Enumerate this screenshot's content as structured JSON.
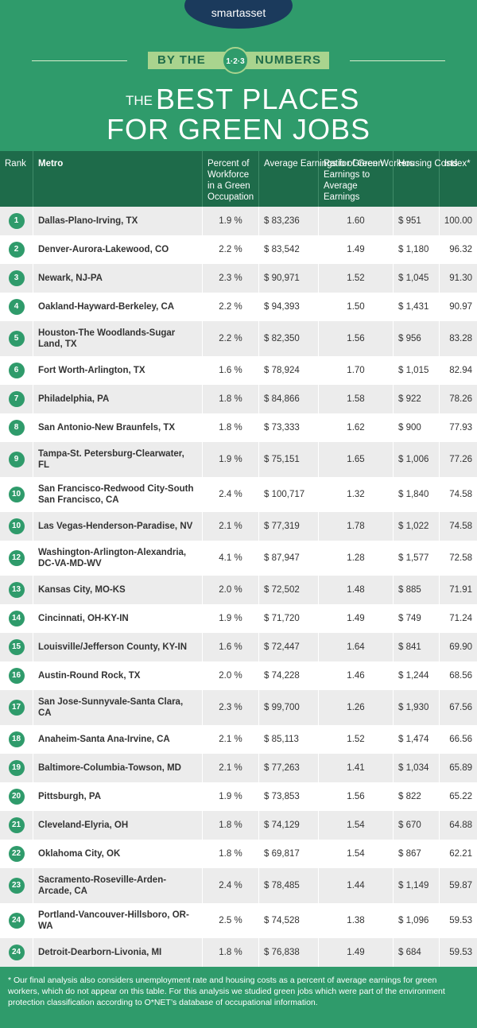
{
  "header": {
    "logo": "smartasset",
    "banner_left": "BY THE",
    "banner_badge": "1·2·3",
    "banner_right": "NUMBERS",
    "title_small": "THE",
    "title_line1": "BEST PLACES",
    "title_line2": "FOR GREEN JOBS"
  },
  "table": {
    "columns": [
      "Rank",
      "Metro",
      "Percent of Workforce in a Green Occupation",
      "Average Earnings for Green Workers",
      "Ratio of Green Earnings to Average Earnings",
      "Housing Costs",
      "Index*"
    ],
    "rows": [
      [
        "1",
        "Dallas-Plano-Irving, TX",
        "1.9 %",
        "$ 83,236",
        "1.60",
        "$ 951",
        "100.00"
      ],
      [
        "2",
        "Denver-Aurora-Lakewood, CO",
        "2.2 %",
        "$ 83,542",
        "1.49",
        "$ 1,180",
        "96.32"
      ],
      [
        "3",
        "Newark, NJ-PA",
        "2.3 %",
        "$ 90,971",
        "1.52",
        "$ 1,045",
        "91.30"
      ],
      [
        "4",
        "Oakland-Hayward-Berkeley, CA",
        "2.2 %",
        "$ 94,393",
        "1.50",
        "$ 1,431",
        "90.97"
      ],
      [
        "5",
        "Houston-The Woodlands-Sugar Land, TX",
        "2.2 %",
        "$ 82,350",
        "1.56",
        "$ 956",
        "83.28"
      ],
      [
        "6",
        "Fort Worth-Arlington, TX",
        "1.6 %",
        "$ 78,924",
        "1.70",
        "$ 1,015",
        "82.94"
      ],
      [
        "7",
        "Philadelphia, PA",
        "1.8 %",
        "$ 84,866",
        "1.58",
        "$ 922",
        "78.26"
      ],
      [
        "8",
        "San Antonio-New Braunfels, TX",
        "1.8 %",
        "$ 73,333",
        "1.62",
        "$ 900",
        "77.93"
      ],
      [
        "9",
        "Tampa-St. Petersburg-Clearwater, FL",
        "1.9 %",
        "$ 75,151",
        "1.65",
        "$ 1,006",
        "77.26"
      ],
      [
        "10",
        "San Francisco-Redwood City-South San Francisco, CA",
        "2.4 %",
        "$ 100,717",
        "1.32",
        "$ 1,840",
        "74.58"
      ],
      [
        "10",
        "Las Vegas-Henderson-Paradise, NV",
        "2.1 %",
        "$ 77,319",
        "1.78",
        "$ 1,022",
        "74.58"
      ],
      [
        "12",
        "Washington-Arlington-Alexandria, DC-VA-MD-WV",
        "4.1 %",
        "$ 87,947",
        "1.28",
        "$ 1,577",
        "72.58"
      ],
      [
        "13",
        "Kansas City, MO-KS",
        "2.0 %",
        "$ 72,502",
        "1.48",
        "$ 885",
        "71.91"
      ],
      [
        "14",
        "Cincinnati, OH-KY-IN",
        "1.9 %",
        "$ 71,720",
        "1.49",
        "$ 749",
        "71.24"
      ],
      [
        "15",
        "Louisville/Jefferson County, KY-IN",
        "1.6 %",
        "$ 72,447",
        "1.64",
        "$ 841",
        "69.90"
      ],
      [
        "16",
        "Austin-Round Rock, TX",
        "2.0 %",
        "$ 74,228",
        "1.46",
        "$ 1,244",
        "68.56"
      ],
      [
        "17",
        "San Jose-Sunnyvale-Santa Clara, CA",
        "2.3 %",
        "$ 99,700",
        "1.26",
        "$ 1,930",
        "67.56"
      ],
      [
        "18",
        "Anaheim-Santa Ana-Irvine, CA",
        "2.1 %",
        "$ 85,113",
        "1.52",
        "$ 1,474",
        "66.56"
      ],
      [
        "19",
        "Baltimore-Columbia-Towson, MD",
        "2.1 %",
        "$ 77,263",
        "1.41",
        "$ 1,034",
        "65.89"
      ],
      [
        "20",
        "Pittsburgh, PA",
        "1.9 %",
        "$ 73,853",
        "1.56",
        "$ 822",
        "65.22"
      ],
      [
        "21",
        "Cleveland-Elyria, OH",
        "1.8 %",
        "$ 74,129",
        "1.54",
        "$ 670",
        "64.88"
      ],
      [
        "22",
        "Oklahoma City, OK",
        "1.8 %",
        "$ 69,817",
        "1.54",
        "$ 867",
        "62.21"
      ],
      [
        "23",
        "Sacramento-Roseville-Arden-Arcade, CA",
        "2.4 %",
        "$ 78,485",
        "1.44",
        "$ 1,149",
        "59.87"
      ],
      [
        "24",
        "Portland-Vancouver-Hillsboro, OR-WA",
        "2.5 %",
        "$ 74,528",
        "1.38",
        "$ 1,096",
        "59.53"
      ],
      [
        "24",
        "Detroit-Dearborn-Livonia, MI",
        "1.8 %",
        "$ 76,838",
        "1.49",
        "$ 684",
        "59.53"
      ]
    ]
  },
  "footnote": "* Our final analysis also considers unemployment rate and housing costs as a percent of average earnings for green workers, which do not appear on this table. For this analysis we studied green jobs which were part of the environment protection classification according to O*NET’s database of occupational information."
}
